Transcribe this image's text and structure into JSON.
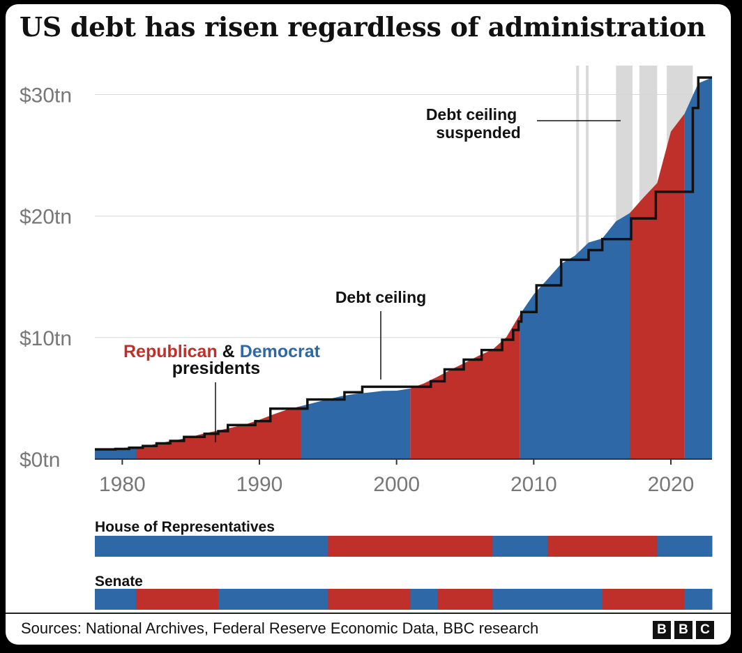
{
  "chart_data": {
    "type": "area",
    "title": "US debt has risen regardless of administration",
    "x_ticks": [
      1980,
      1990,
      2000,
      2010,
      2020
    ],
    "y_ticks": [
      "$0tn",
      "$10tn",
      "$20tn",
      "$30tn"
    ],
    "y_tick_values": [
      0,
      10,
      20,
      30
    ],
    "xlim": [
      1978,
      2023
    ],
    "ylim": [
      0,
      32.5
    ],
    "colors": {
      "republican": "#c0302b",
      "democrat": "#2e68a6",
      "ceiling": "#111111",
      "suspended": "#d9d9d9"
    },
    "debt_series": [
      [
        1978,
        0.77
      ],
      [
        1979,
        0.83
      ],
      [
        1980,
        0.91
      ],
      [
        1981,
        1.0
      ],
      [
        1982,
        1.14
      ],
      [
        1983,
        1.37
      ],
      [
        1984,
        1.57
      ],
      [
        1985,
        1.82
      ],
      [
        1986,
        2.12
      ],
      [
        1987,
        2.35
      ],
      [
        1988,
        2.6
      ],
      [
        1989,
        2.86
      ],
      [
        1990,
        3.23
      ],
      [
        1991,
        3.67
      ],
      [
        1992,
        4.06
      ],
      [
        1993,
        4.35
      ],
      [
        1994,
        4.64
      ],
      [
        1995,
        4.92
      ],
      [
        1996,
        5.18
      ],
      [
        1997,
        5.37
      ],
      [
        1998,
        5.48
      ],
      [
        1999,
        5.61
      ],
      [
        2000,
        5.63
      ],
      [
        2001,
        5.81
      ],
      [
        2002,
        6.23
      ],
      [
        2003,
        6.78
      ],
      [
        2004,
        7.38
      ],
      [
        2005,
        7.93
      ],
      [
        2006,
        8.51
      ],
      [
        2007,
        9.01
      ],
      [
        2008,
        10.02
      ],
      [
        2009,
        11.91
      ],
      [
        2010,
        13.56
      ],
      [
        2011,
        14.79
      ],
      [
        2012,
        16.07
      ],
      [
        2013,
        16.74
      ],
      [
        2014,
        17.82
      ],
      [
        2015,
        18.15
      ],
      [
        2016,
        19.57
      ],
      [
        2017,
        20.24
      ],
      [
        2018,
        21.52
      ],
      [
        2019,
        22.72
      ],
      [
        2020,
        26.95
      ],
      [
        2021,
        28.43
      ],
      [
        2022,
        30.93
      ],
      [
        2023,
        31.4
      ]
    ],
    "presidents": [
      {
        "party": "D",
        "start": 1978,
        "end": 1981
      },
      {
        "party": "R",
        "start": 1981,
        "end": 1993
      },
      {
        "party": "D",
        "start": 1993,
        "end": 2001
      },
      {
        "party": "R",
        "start": 2001,
        "end": 2009
      },
      {
        "party": "D",
        "start": 2009,
        "end": 2017
      },
      {
        "party": "R",
        "start": 2017,
        "end": 2021
      },
      {
        "party": "D",
        "start": 2021,
        "end": 2023
      }
    ],
    "debt_ceiling_steps": [
      [
        1978,
        0.8
      ],
      [
        1979.5,
        0.83
      ],
      [
        1980.5,
        0.93
      ],
      [
        1981.5,
        1.08
      ],
      [
        1982.5,
        1.29
      ],
      [
        1983.5,
        1.49
      ],
      [
        1984.5,
        1.82
      ],
      [
        1986,
        2.08
      ],
      [
        1987,
        2.3
      ],
      [
        1987.7,
        2.8
      ],
      [
        1989.7,
        3.12
      ],
      [
        1990.8,
        4.15
      ],
      [
        1993.5,
        4.9
      ],
      [
        1996.2,
        5.5
      ],
      [
        1997.5,
        5.95
      ],
      [
        2002.5,
        6.4
      ],
      [
        2003.5,
        7.38
      ],
      [
        2004.9,
        8.18
      ],
      [
        2006.2,
        8.97
      ],
      [
        2007.7,
        9.82
      ],
      [
        2008.5,
        10.62
      ],
      [
        2008.9,
        11.32
      ],
      [
        2009.1,
        12.1
      ],
      [
        2010.2,
        14.3
      ],
      [
        2012,
        16.4
      ],
      [
        2014,
        17.2
      ],
      [
        2015,
        18.1
      ],
      [
        2017.1,
        19.8
      ],
      [
        2018.9,
        22.0
      ],
      [
        2021.6,
        28.9
      ],
      [
        2022,
        31.4
      ],
      [
        2023,
        31.4
      ]
    ],
    "suspended_periods": [
      [
        2013.1,
        2013.3
      ],
      [
        2013.8,
        2014.0
      ],
      [
        2016.0,
        2017.2
      ],
      [
        2017.7,
        2019.0
      ],
      [
        2019.7,
        2021.6
      ]
    ],
    "annotations": {
      "debt_ceiling_suspended": [
        "Debt ceiling",
        "suspended"
      ],
      "debt_ceiling": "Debt ceiling",
      "republican_label": "Republican",
      "amp": "&",
      "democrat_label": "Democrat",
      "presidents_label": "presidents"
    },
    "house": {
      "label": "House of Representatives",
      "segments": [
        {
          "party": "D",
          "start": 1978,
          "end": 1995
        },
        {
          "party": "R",
          "start": 1995,
          "end": 2007
        },
        {
          "party": "D",
          "start": 2007,
          "end": 2011
        },
        {
          "party": "R",
          "start": 2011,
          "end": 2019
        },
        {
          "party": "D",
          "start": 2019,
          "end": 2023
        }
      ]
    },
    "senate": {
      "label": "Senate",
      "segments": [
        {
          "party": "D",
          "start": 1978,
          "end": 1981
        },
        {
          "party": "R",
          "start": 1981,
          "end": 1987
        },
        {
          "party": "D",
          "start": 1987,
          "end": 1995
        },
        {
          "party": "R",
          "start": 1995,
          "end": 2001
        },
        {
          "party": "D",
          "start": 2001,
          "end": 2003
        },
        {
          "party": "R",
          "start": 2003,
          "end": 2007
        },
        {
          "party": "D",
          "start": 2007,
          "end": 2015
        },
        {
          "party": "R",
          "start": 2015,
          "end": 2021
        },
        {
          "party": "D",
          "start": 2021,
          "end": 2023
        }
      ]
    }
  },
  "footer": {
    "source": "Sources: National Archives, Federal Reserve Economic Data, BBC research",
    "logo_letters": [
      "B",
      "B",
      "C"
    ]
  }
}
